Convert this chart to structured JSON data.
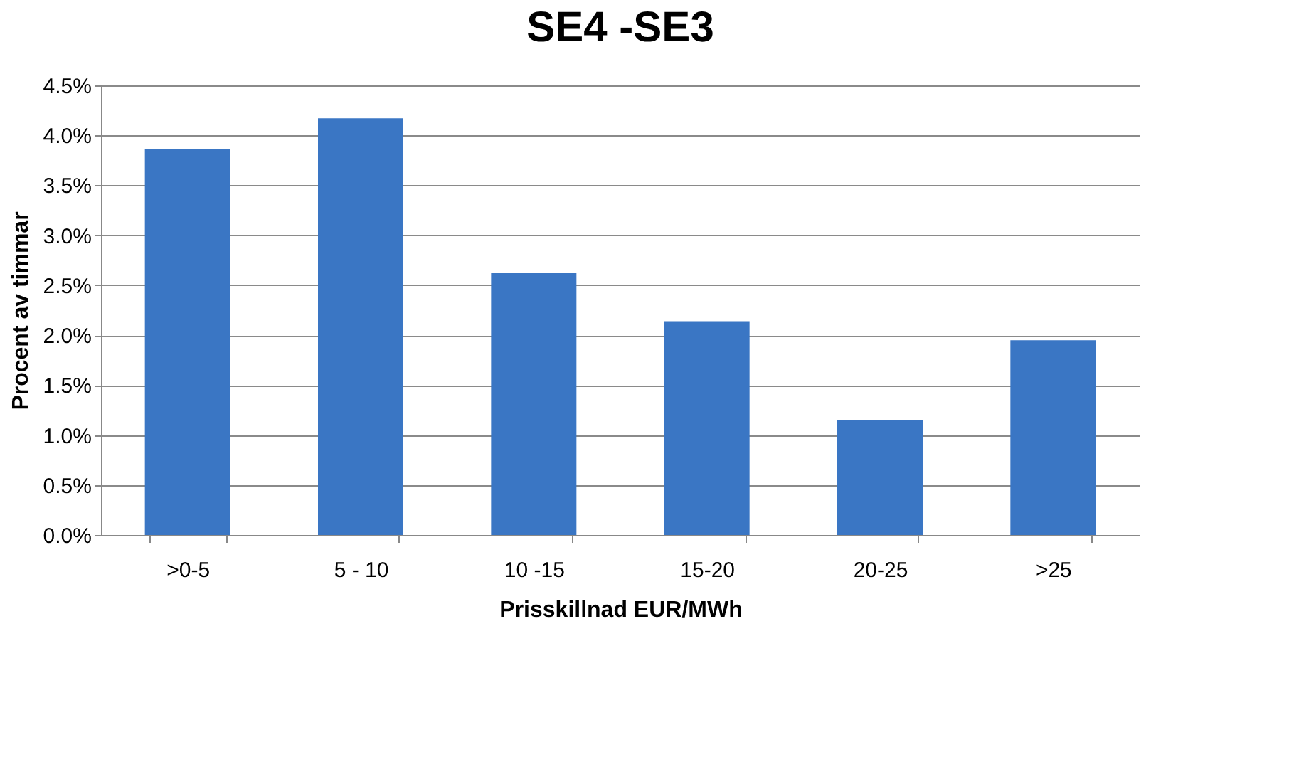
{
  "chart_data": {
    "type": "bar",
    "title": "SE4 -SE3",
    "xlabel": "Prisskillnad EUR/MWh",
    "ylabel": "Procent av timmar",
    "categories": [
      ">0-5",
      "5 - 10",
      "10 -15",
      "15-20",
      "20-25",
      ">25"
    ],
    "values": [
      3.86,
      4.17,
      2.62,
      2.14,
      1.15,
      1.95
    ],
    "color": "#3a76c4",
    "ylim": [
      0,
      4.5
    ],
    "yticks": [
      {
        "value": 0,
        "label": "0.0%"
      },
      {
        "value": 0.5,
        "label": "0.5%"
      },
      {
        "value": 1,
        "label": "1.0%"
      },
      {
        "value": 1.5,
        "label": "1.5%"
      },
      {
        "value": 2,
        "label": "2.0%"
      },
      {
        "value": 2.5,
        "label": "2.5%"
      },
      {
        "value": 3,
        "label": "3.0%"
      },
      {
        "value": 3.5,
        "label": "3.5%"
      },
      {
        "value": 4,
        "label": "4.0%"
      },
      {
        "value": 4.5,
        "label": "4.5%"
      }
    ],
    "grid": "y"
  }
}
